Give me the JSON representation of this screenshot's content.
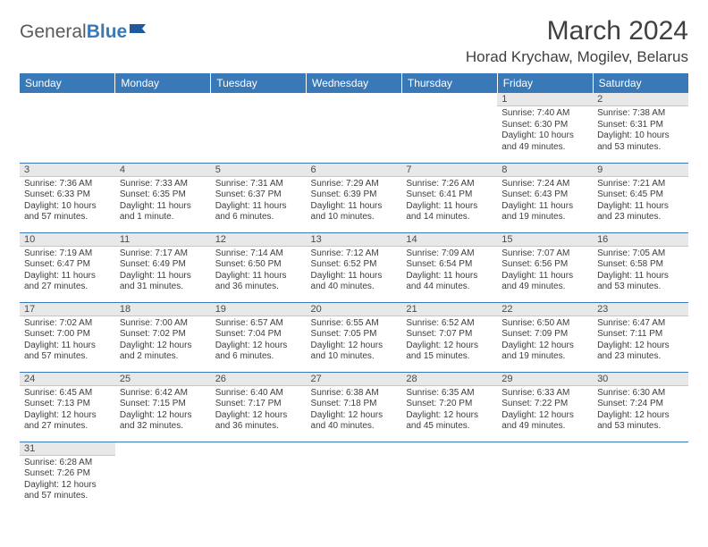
{
  "logo": {
    "general": "General",
    "blue": "Blue"
  },
  "title": "March 2024",
  "location": "Horad Krychaw, Mogilev, Belarus",
  "colors": {
    "header_bg": "#3a79b7",
    "header_text": "#ffffff",
    "daynum_bg": "#e8e8e8",
    "text": "#3d3d3d",
    "border": "#3a79b7"
  },
  "weekdays": [
    "Sunday",
    "Monday",
    "Tuesday",
    "Wednesday",
    "Thursday",
    "Friday",
    "Saturday"
  ],
  "weeks": [
    [
      null,
      null,
      null,
      null,
      null,
      {
        "n": "1",
        "sr": "Sunrise: 7:40 AM",
        "ss": "Sunset: 6:30 PM",
        "dl": "Daylight: 10 hours and 49 minutes."
      },
      {
        "n": "2",
        "sr": "Sunrise: 7:38 AM",
        "ss": "Sunset: 6:31 PM",
        "dl": "Daylight: 10 hours and 53 minutes."
      }
    ],
    [
      {
        "n": "3",
        "sr": "Sunrise: 7:36 AM",
        "ss": "Sunset: 6:33 PM",
        "dl": "Daylight: 10 hours and 57 minutes."
      },
      {
        "n": "4",
        "sr": "Sunrise: 7:33 AM",
        "ss": "Sunset: 6:35 PM",
        "dl": "Daylight: 11 hours and 1 minute."
      },
      {
        "n": "5",
        "sr": "Sunrise: 7:31 AM",
        "ss": "Sunset: 6:37 PM",
        "dl": "Daylight: 11 hours and 6 minutes."
      },
      {
        "n": "6",
        "sr": "Sunrise: 7:29 AM",
        "ss": "Sunset: 6:39 PM",
        "dl": "Daylight: 11 hours and 10 minutes."
      },
      {
        "n": "7",
        "sr": "Sunrise: 7:26 AM",
        "ss": "Sunset: 6:41 PM",
        "dl": "Daylight: 11 hours and 14 minutes."
      },
      {
        "n": "8",
        "sr": "Sunrise: 7:24 AM",
        "ss": "Sunset: 6:43 PM",
        "dl": "Daylight: 11 hours and 19 minutes."
      },
      {
        "n": "9",
        "sr": "Sunrise: 7:21 AM",
        "ss": "Sunset: 6:45 PM",
        "dl": "Daylight: 11 hours and 23 minutes."
      }
    ],
    [
      {
        "n": "10",
        "sr": "Sunrise: 7:19 AM",
        "ss": "Sunset: 6:47 PM",
        "dl": "Daylight: 11 hours and 27 minutes."
      },
      {
        "n": "11",
        "sr": "Sunrise: 7:17 AM",
        "ss": "Sunset: 6:49 PM",
        "dl": "Daylight: 11 hours and 31 minutes."
      },
      {
        "n": "12",
        "sr": "Sunrise: 7:14 AM",
        "ss": "Sunset: 6:50 PM",
        "dl": "Daylight: 11 hours and 36 minutes."
      },
      {
        "n": "13",
        "sr": "Sunrise: 7:12 AM",
        "ss": "Sunset: 6:52 PM",
        "dl": "Daylight: 11 hours and 40 minutes."
      },
      {
        "n": "14",
        "sr": "Sunrise: 7:09 AM",
        "ss": "Sunset: 6:54 PM",
        "dl": "Daylight: 11 hours and 44 minutes."
      },
      {
        "n": "15",
        "sr": "Sunrise: 7:07 AM",
        "ss": "Sunset: 6:56 PM",
        "dl": "Daylight: 11 hours and 49 minutes."
      },
      {
        "n": "16",
        "sr": "Sunrise: 7:05 AM",
        "ss": "Sunset: 6:58 PM",
        "dl": "Daylight: 11 hours and 53 minutes."
      }
    ],
    [
      {
        "n": "17",
        "sr": "Sunrise: 7:02 AM",
        "ss": "Sunset: 7:00 PM",
        "dl": "Daylight: 11 hours and 57 minutes."
      },
      {
        "n": "18",
        "sr": "Sunrise: 7:00 AM",
        "ss": "Sunset: 7:02 PM",
        "dl": "Daylight: 12 hours and 2 minutes."
      },
      {
        "n": "19",
        "sr": "Sunrise: 6:57 AM",
        "ss": "Sunset: 7:04 PM",
        "dl": "Daylight: 12 hours and 6 minutes."
      },
      {
        "n": "20",
        "sr": "Sunrise: 6:55 AM",
        "ss": "Sunset: 7:05 PM",
        "dl": "Daylight: 12 hours and 10 minutes."
      },
      {
        "n": "21",
        "sr": "Sunrise: 6:52 AM",
        "ss": "Sunset: 7:07 PM",
        "dl": "Daylight: 12 hours and 15 minutes."
      },
      {
        "n": "22",
        "sr": "Sunrise: 6:50 AM",
        "ss": "Sunset: 7:09 PM",
        "dl": "Daylight: 12 hours and 19 minutes."
      },
      {
        "n": "23",
        "sr": "Sunrise: 6:47 AM",
        "ss": "Sunset: 7:11 PM",
        "dl": "Daylight: 12 hours and 23 minutes."
      }
    ],
    [
      {
        "n": "24",
        "sr": "Sunrise: 6:45 AM",
        "ss": "Sunset: 7:13 PM",
        "dl": "Daylight: 12 hours and 27 minutes."
      },
      {
        "n": "25",
        "sr": "Sunrise: 6:42 AM",
        "ss": "Sunset: 7:15 PM",
        "dl": "Daylight: 12 hours and 32 minutes."
      },
      {
        "n": "26",
        "sr": "Sunrise: 6:40 AM",
        "ss": "Sunset: 7:17 PM",
        "dl": "Daylight: 12 hours and 36 minutes."
      },
      {
        "n": "27",
        "sr": "Sunrise: 6:38 AM",
        "ss": "Sunset: 7:18 PM",
        "dl": "Daylight: 12 hours and 40 minutes."
      },
      {
        "n": "28",
        "sr": "Sunrise: 6:35 AM",
        "ss": "Sunset: 7:20 PM",
        "dl": "Daylight: 12 hours and 45 minutes."
      },
      {
        "n": "29",
        "sr": "Sunrise: 6:33 AM",
        "ss": "Sunset: 7:22 PM",
        "dl": "Daylight: 12 hours and 49 minutes."
      },
      {
        "n": "30",
        "sr": "Sunrise: 6:30 AM",
        "ss": "Sunset: 7:24 PM",
        "dl": "Daylight: 12 hours and 53 minutes."
      }
    ],
    [
      {
        "n": "31",
        "sr": "Sunrise: 6:28 AM",
        "ss": "Sunset: 7:26 PM",
        "dl": "Daylight: 12 hours and 57 minutes."
      },
      null,
      null,
      null,
      null,
      null,
      null
    ]
  ]
}
